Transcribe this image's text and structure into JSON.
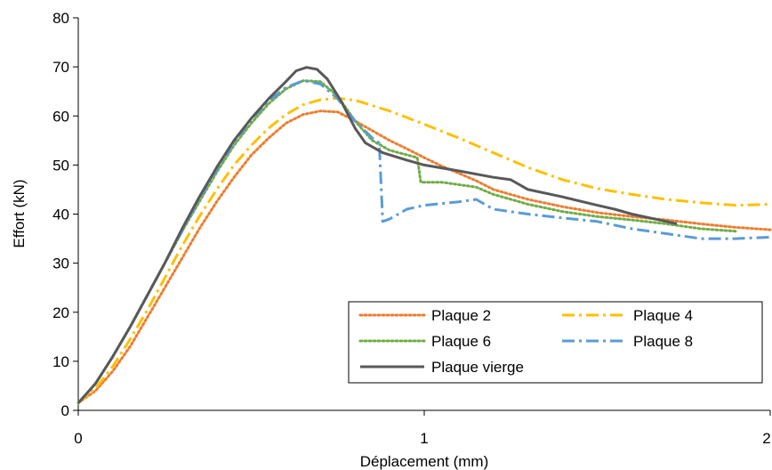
{
  "chart_data": {
    "type": "line",
    "xlabel": "Déplacement (mm)",
    "ylabel": "Effort (kN)",
    "xlim": [
      0,
      2
    ],
    "ylim": [
      0,
      80
    ],
    "x_ticks": [
      "0",
      "1",
      "2"
    ],
    "y_ticks": [
      "0",
      "10",
      "20",
      "30",
      "40",
      "50",
      "60",
      "70",
      "80"
    ],
    "grid": false,
    "legend_position": "bottom-right",
    "series": [
      {
        "name": "Plaque 2",
        "color": "#ED7D31",
        "dash": "dotted",
        "points": [
          [
            0.0,
            1.5
          ],
          [
            0.05,
            4
          ],
          [
            0.1,
            8
          ],
          [
            0.15,
            13
          ],
          [
            0.2,
            19
          ],
          [
            0.25,
            25
          ],
          [
            0.3,
            31
          ],
          [
            0.35,
            37
          ],
          [
            0.4,
            42.5
          ],
          [
            0.45,
            47.5
          ],
          [
            0.5,
            52
          ],
          [
            0.55,
            55.5
          ],
          [
            0.6,
            58.5
          ],
          [
            0.65,
            60.3
          ],
          [
            0.7,
            61
          ],
          [
            0.75,
            60.8
          ],
          [
            0.8,
            59
          ],
          [
            0.85,
            57
          ],
          [
            0.9,
            55
          ],
          [
            0.95,
            53.3
          ],
          [
            1.0,
            51.5
          ],
          [
            1.05,
            49.8
          ],
          [
            1.1,
            48.3
          ],
          [
            1.15,
            46.8
          ],
          [
            1.2,
            45
          ],
          [
            1.3,
            43
          ],
          [
            1.4,
            41.5
          ],
          [
            1.5,
            40.3
          ],
          [
            1.6,
            39.5
          ],
          [
            1.7,
            38.8
          ],
          [
            1.8,
            38
          ],
          [
            1.9,
            37.3
          ],
          [
            2.0,
            36.8
          ]
        ]
      },
      {
        "name": "Plaque 4",
        "color": "#FFC000",
        "dash": "dash-dot",
        "points": [
          [
            0.0,
            1.5
          ],
          [
            0.05,
            4.5
          ],
          [
            0.1,
            9
          ],
          [
            0.15,
            14.5
          ],
          [
            0.2,
            20.5
          ],
          [
            0.25,
            27
          ],
          [
            0.3,
            33.5
          ],
          [
            0.35,
            39.5
          ],
          [
            0.4,
            45
          ],
          [
            0.45,
            50
          ],
          [
            0.5,
            54
          ],
          [
            0.55,
            57.5
          ],
          [
            0.6,
            60.3
          ],
          [
            0.65,
            62.3
          ],
          [
            0.7,
            63.3
          ],
          [
            0.75,
            63.6
          ],
          [
            0.8,
            63.2
          ],
          [
            0.9,
            61
          ],
          [
            1.0,
            58.3
          ],
          [
            1.1,
            55.5
          ],
          [
            1.2,
            52.5
          ],
          [
            1.3,
            49.5
          ],
          [
            1.4,
            47
          ],
          [
            1.5,
            45.2
          ],
          [
            1.6,
            44
          ],
          [
            1.7,
            43
          ],
          [
            1.8,
            42.3
          ],
          [
            1.9,
            41.8
          ],
          [
            2.0,
            42
          ]
        ]
      },
      {
        "name": "Plaque 6",
        "color": "#70AD47",
        "dash": "dotted",
        "points": [
          [
            0.0,
            1.5
          ],
          [
            0.05,
            5.5
          ],
          [
            0.1,
            11
          ],
          [
            0.15,
            17
          ],
          [
            0.2,
            23.5
          ],
          [
            0.25,
            30
          ],
          [
            0.3,
            36.5
          ],
          [
            0.35,
            42.5
          ],
          [
            0.4,
            48.5
          ],
          [
            0.45,
            54
          ],
          [
            0.5,
            58.5
          ],
          [
            0.55,
            62.5
          ],
          [
            0.6,
            65.5
          ],
          [
            0.65,
            67.2
          ],
          [
            0.7,
            67
          ],
          [
            0.75,
            64
          ],
          [
            0.8,
            59
          ],
          [
            0.85,
            55
          ],
          [
            0.9,
            53
          ],
          [
            0.98,
            51.5
          ],
          [
            0.99,
            46.5
          ],
          [
            1.05,
            46.5
          ],
          [
            1.15,
            45.5
          ],
          [
            1.2,
            44
          ],
          [
            1.3,
            42
          ],
          [
            1.4,
            40.5
          ],
          [
            1.5,
            39.5
          ],
          [
            1.6,
            38.8
          ],
          [
            1.7,
            38
          ],
          [
            1.8,
            37
          ],
          [
            1.9,
            36.5
          ]
        ]
      },
      {
        "name": "Plaque 8",
        "color": "#5B9BD5",
        "dash": "dash-dot",
        "points": [
          [
            0.0,
            1.5
          ],
          [
            0.05,
            5.5
          ],
          [
            0.1,
            11
          ],
          [
            0.15,
            17
          ],
          [
            0.2,
            23.5
          ],
          [
            0.25,
            30
          ],
          [
            0.3,
            36.5
          ],
          [
            0.35,
            43
          ],
          [
            0.4,
            49
          ],
          [
            0.45,
            54.5
          ],
          [
            0.5,
            59.3
          ],
          [
            0.55,
            63
          ],
          [
            0.6,
            65.8
          ],
          [
            0.65,
            67.2
          ],
          [
            0.7,
            66.5
          ],
          [
            0.75,
            63.5
          ],
          [
            0.8,
            59
          ],
          [
            0.85,
            55.5
          ],
          [
            0.87,
            54.5
          ],
          [
            0.88,
            38.5
          ],
          [
            0.9,
            39
          ],
          [
            0.95,
            41
          ],
          [
            1.0,
            41.8
          ],
          [
            1.1,
            42.5
          ],
          [
            1.15,
            43
          ],
          [
            1.2,
            41
          ],
          [
            1.3,
            40
          ],
          [
            1.4,
            39.2
          ],
          [
            1.5,
            38.5
          ],
          [
            1.6,
            37
          ],
          [
            1.7,
            36
          ],
          [
            1.8,
            35
          ],
          [
            1.9,
            35
          ],
          [
            2.0,
            35.3
          ]
        ]
      },
      {
        "name": "Plaque vierge",
        "color": "#595959",
        "dash": "solid",
        "points": [
          [
            0.0,
            1.5
          ],
          [
            0.05,
            5.5
          ],
          [
            0.1,
            11
          ],
          [
            0.15,
            17
          ],
          [
            0.2,
            23.5
          ],
          [
            0.25,
            30
          ],
          [
            0.3,
            37
          ],
          [
            0.35,
            43.5
          ],
          [
            0.4,
            49.5
          ],
          [
            0.45,
            55
          ],
          [
            0.5,
            59.5
          ],
          [
            0.55,
            63.5
          ],
          [
            0.6,
            67
          ],
          [
            0.63,
            69.2
          ],
          [
            0.66,
            69.9
          ],
          [
            0.69,
            69.5
          ],
          [
            0.72,
            67.5
          ],
          [
            0.76,
            63
          ],
          [
            0.8,
            57.5
          ],
          [
            0.83,
            54.5
          ],
          [
            0.88,
            52.5
          ],
          [
            0.95,
            51
          ],
          [
            1.0,
            50
          ],
          [
            1.1,
            48.8
          ],
          [
            1.2,
            47.5
          ],
          [
            1.25,
            47
          ],
          [
            1.3,
            45
          ],
          [
            1.4,
            43.5
          ],
          [
            1.5,
            41.8
          ],
          [
            1.55,
            41
          ],
          [
            1.6,
            40
          ],
          [
            1.7,
            38.5
          ],
          [
            1.73,
            38
          ]
        ]
      }
    ]
  }
}
